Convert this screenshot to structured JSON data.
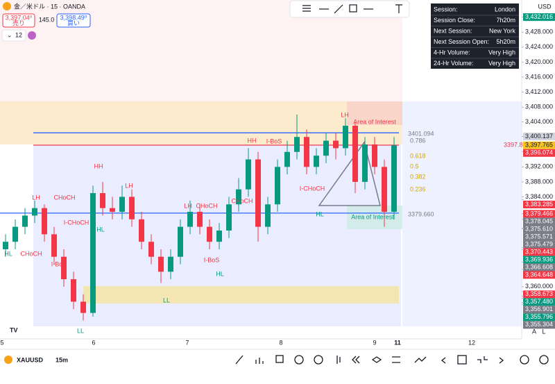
{
  "header": {
    "symbol_title": "金／米ドル · 15 · OANDA",
    "sell_price": "3,397.04⁰",
    "sell_label": "売り",
    "spread": "145.0",
    "buy_price": "3,398.49⁰",
    "buy_label": "買い",
    "interval_count": "12",
    "currency": "USD"
  },
  "drawing_toolbar": {
    "items": [
      "lines",
      "hline",
      "trend",
      "rect",
      "path",
      "text"
    ]
  },
  "session_table": {
    "rows": [
      [
        "Session:",
        "London"
      ],
      [
        "Session Close:",
        "7h20m"
      ],
      [
        "Next Session:",
        "New York"
      ],
      [
        "Next Session Open:",
        "5h20m"
      ],
      [
        "4-Hr Volume:",
        "Very High"
      ],
      [
        "24-Hr Volume:",
        "Very High"
      ]
    ]
  },
  "chart_data": {
    "type": "candlestick",
    "candles": [
      [
        3370,
        3374,
        3368,
        3372
      ],
      [
        3372,
        3378,
        3370,
        3376
      ],
      [
        3376,
        3381,
        3374,
        3379
      ],
      [
        3379,
        3383,
        3377,
        3381
      ],
      [
        3381,
        3382,
        3372,
        3374
      ],
      [
        3374,
        3376,
        3366,
        3368
      ],
      [
        3368,
        3370,
        3360,
        3362
      ],
      [
        3362,
        3364,
        3354,
        3356
      ],
      [
        3356,
        3358,
        3351,
        3353
      ],
      [
        3353,
        3387,
        3352,
        3385
      ],
      [
        3385,
        3388,
        3379,
        3381
      ],
      [
        3381,
        3384,
        3378,
        3380
      ],
      [
        3380,
        3387,
        3378,
        3384
      ],
      [
        3384,
        3386,
        3376,
        3378
      ],
      [
        3378,
        3380,
        3370,
        3372
      ],
      [
        3372,
        3374,
        3366,
        3368
      ],
      [
        3368,
        3370,
        3361,
        3364
      ],
      [
        3364,
        3370,
        3362,
        3368
      ],
      [
        3368,
        3378,
        3366,
        3376
      ],
      [
        3376,
        3383,
        3374,
        3380
      ],
      [
        3380,
        3382,
        3374,
        3376
      ],
      [
        3376,
        3378,
        3370,
        3372
      ],
      [
        3372,
        3377,
        3370,
        3375
      ],
      [
        3375,
        3384,
        3373,
        3382
      ],
      [
        3382,
        3389,
        3380,
        3386
      ],
      [
        3386,
        3397,
        3384,
        3394
      ],
      [
        3394,
        3396,
        3372,
        3376
      ],
      [
        3376,
        3384,
        3374,
        3382
      ],
      [
        3382,
        3394,
        3380,
        3392
      ],
      [
        3392,
        3399,
        3390,
        3396
      ],
      [
        3396,
        3406,
        3394,
        3400
      ],
      [
        3400,
        3402,
        3390,
        3392
      ],
      [
        3392,
        3397,
        3390,
        3395
      ],
      [
        3395,
        3401,
        3393,
        3399
      ],
      [
        3399,
        3401,
        3394,
        3397
      ],
      [
        3397,
        3405,
        3395,
        3403
      ],
      [
        3403,
        3404,
        3385,
        3388
      ],
      [
        3388,
        3400,
        3386,
        3398
      ],
      [
        3398,
        3400,
        3390,
        3392
      ],
      [
        3392,
        3394,
        3376,
        3380
      ],
      [
        3380,
        3400,
        3378,
        3397.765
      ]
    ],
    "up_color": "#089981",
    "down_color": "#f23645",
    "ylim": [
      3352,
      3432.5
    ],
    "yticks": [
      {
        "value": 3432.016,
        "label": "3,432.016",
        "bg": "#089981"
      },
      {
        "value": 3428,
        "label": "3,428.000"
      },
      {
        "value": 3424,
        "label": "3,424.000"
      },
      {
        "value": 3420,
        "label": "3,420.000"
      },
      {
        "value": 3416,
        "label": "3,416.000"
      },
      {
        "value": 3412,
        "label": "3,412.000"
      },
      {
        "value": 3408,
        "label": "3,408.000"
      },
      {
        "value": 3404,
        "label": "3,404.000"
      },
      {
        "value": 3400.137,
        "label": "3,400.137",
        "bg": "#d1d4dc"
      },
      {
        "value": 3397.765,
        "label": "3,397.765",
        "bg": "#f7c325"
      },
      {
        "value": 3396.074,
        "label": "3,396.074",
        "bg": "#f23645"
      },
      {
        "value": 3392,
        "label": "3,392.000"
      },
      {
        "value": 3388,
        "label": "3,388.000"
      },
      {
        "value": 3384,
        "label": "3,384.000"
      },
      {
        "value": 3383.285,
        "label": "3,383.285",
        "bg": "#f23645"
      },
      {
        "value": 3379.466,
        "label": "3,379.466",
        "bg": "#f23645"
      },
      {
        "value": 3378.045,
        "label": "3,378.045",
        "bg": "#787b86"
      },
      {
        "value": 3375.61,
        "label": "3,375.610",
        "bg": "#787b86"
      },
      {
        "value": 3375.571,
        "label": "3,375.571",
        "bg": "#787b86"
      },
      {
        "value": 3375.479,
        "label": "3,375.479",
        "bg": "#787b86"
      },
      {
        "value": 3370.443,
        "label": "3,370.443",
        "bg": "#f23645"
      },
      {
        "value": 3369.936,
        "label": "3,369.936",
        "bg": "#089981"
      },
      {
        "value": 3366.608,
        "label": "3,366.608",
        "bg": "#787b86"
      },
      {
        "value": 3364.648,
        "label": "3,364.648",
        "bg": "#f23645"
      },
      {
        "value": 3360,
        "label": "3,360.000"
      },
      {
        "value": 3358.673,
        "label": "3,358.673",
        "bg": "#f23645"
      },
      {
        "value": 3357.48,
        "label": "3,357.480",
        "bg": "#089981"
      },
      {
        "value": 3356.901,
        "label": "3,356.901",
        "bg": "#787b86"
      },
      {
        "value": 3355.796,
        "label": "3,355.796",
        "bg": "#089981"
      },
      {
        "value": 3355.304,
        "label": "3,355.304",
        "bg": "#787b86"
      }
    ],
    "x_labels": [
      "5",
      "6",
      "7",
      "8",
      "9",
      "11",
      "12"
    ],
    "levels": [
      {
        "value": 3401.094,
        "label": "3401.094",
        "color": "#2962ff"
      },
      {
        "value": 3379.66,
        "label": "3379.660",
        "color": "#2962ff"
      },
      {
        "value": 3397.82,
        "label": "3397.82",
        "color": "#f23645"
      }
    ],
    "fib_labels": [
      "0.786",
      "0.618",
      "0.5",
      "0.382",
      "0.236"
    ],
    "annotations": [
      "LH",
      "HH",
      "LH",
      "LH",
      "HH",
      "LH",
      "HL",
      "HL",
      "HL",
      "HL",
      "LL",
      "LL",
      "CHoCH",
      "CHoCH",
      "CHoCH",
      "I-BoS",
      "I-CHoCH",
      "Area of Interest",
      "Area of Interest",
      "CHoCH",
      "I-BoS",
      "I-CHoCH",
      "I-BoS"
    ]
  },
  "footer": {
    "symbol": "XAUUSD",
    "interval": "15m",
    "scale_buttons": [
      "A",
      "L"
    ]
  }
}
